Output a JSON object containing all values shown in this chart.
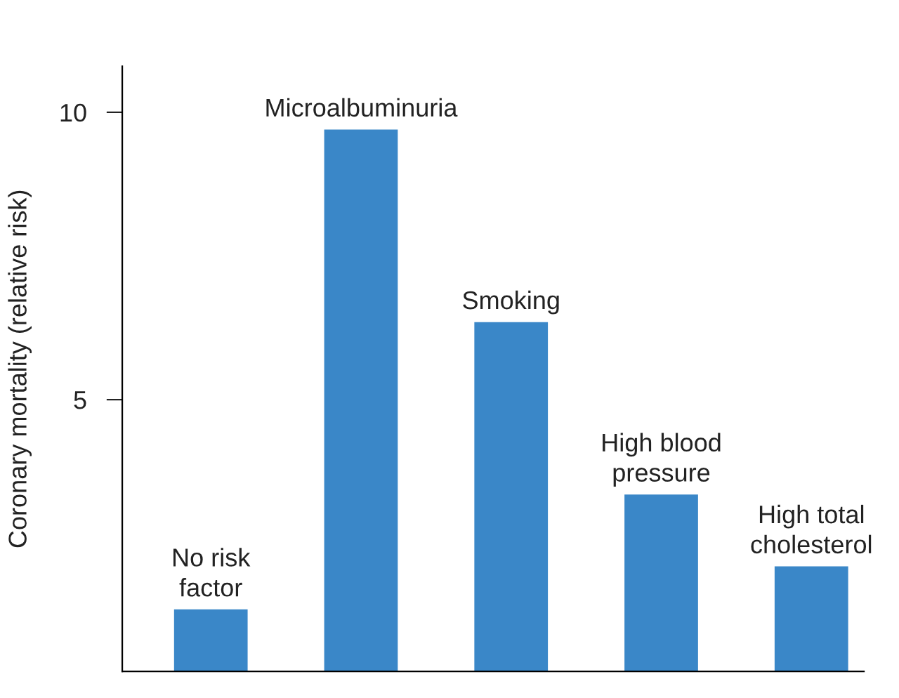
{
  "chart_data": {
    "type": "bar",
    "ylabel": "Coronary mortality (relative risk)",
    "categories": [
      "No risk\nfactor",
      "Microalbuminuria",
      "Smoking",
      "High blood\npressure",
      "High total\ncholesterol"
    ],
    "values": [
      1.35,
      9.7,
      6.35,
      3.35,
      2.1
    ],
    "color": "#3a87c8",
    "ylim": [
      0.27,
      10.8
    ],
    "yticks": [
      5,
      10
    ],
    "grid": false
  }
}
